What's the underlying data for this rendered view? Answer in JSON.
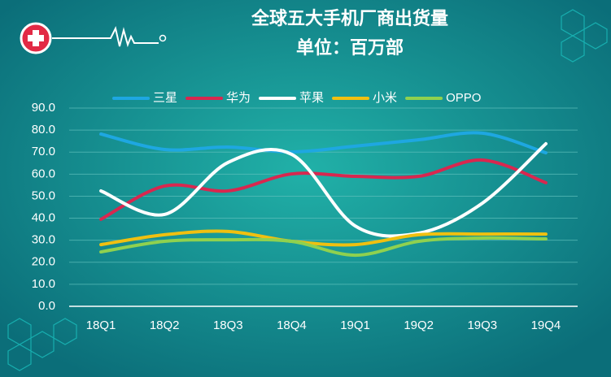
{
  "chart_data": {
    "type": "line",
    "title": "全球五大手机厂商出货量",
    "subtitle": "单位：百万部",
    "categories": [
      "18Q1",
      "18Q2",
      "18Q3",
      "18Q4",
      "19Q1",
      "19Q2",
      "19Q3",
      "19Q4"
    ],
    "series": [
      {
        "name": "三星",
        "color": "#1ea7e1",
        "values": [
          78.2,
          71.2,
          72.3,
          70.1,
          72.7,
          75.6,
          78.6,
          69.7
        ]
      },
      {
        "name": "华为",
        "color": "#d8274f",
        "values": [
          39.5,
          54.6,
          52.4,
          60.1,
          59.0,
          59.0,
          66.4,
          56.1
        ]
      },
      {
        "name": "苹果",
        "color": "#ffffff",
        "values": [
          52.4,
          41.7,
          65.3,
          69.0,
          36.5,
          33.2,
          46.8,
          73.8
        ]
      },
      {
        "name": "小米",
        "color": "#f0c010",
        "values": [
          28.0,
          32.5,
          34.0,
          29.5,
          28.0,
          32.5,
          32.8,
          32.8
        ]
      },
      {
        "name": "OPPO",
        "color": "#8fd14f",
        "values": [
          24.7,
          29.5,
          30.2,
          29.5,
          23.2,
          29.5,
          31.0,
          30.6
        ]
      }
    ],
    "ylim": [
      0,
      90
    ],
    "yticks": [
      {
        "value": 0,
        "label": "0.0"
      },
      {
        "value": 10,
        "label": "10.0"
      },
      {
        "value": 20,
        "label": "20.0"
      },
      {
        "value": 30,
        "label": "30.0"
      },
      {
        "value": 40,
        "label": "40.0"
      },
      {
        "value": 50,
        "label": "50.0"
      },
      {
        "value": 60,
        "label": "60.0"
      },
      {
        "value": 70,
        "label": "70.0"
      },
      {
        "value": 80,
        "label": "80.0"
      },
      {
        "value": 90,
        "label": "90.0"
      }
    ],
    "grid": true,
    "legend": "top",
    "smooth": true
  }
}
